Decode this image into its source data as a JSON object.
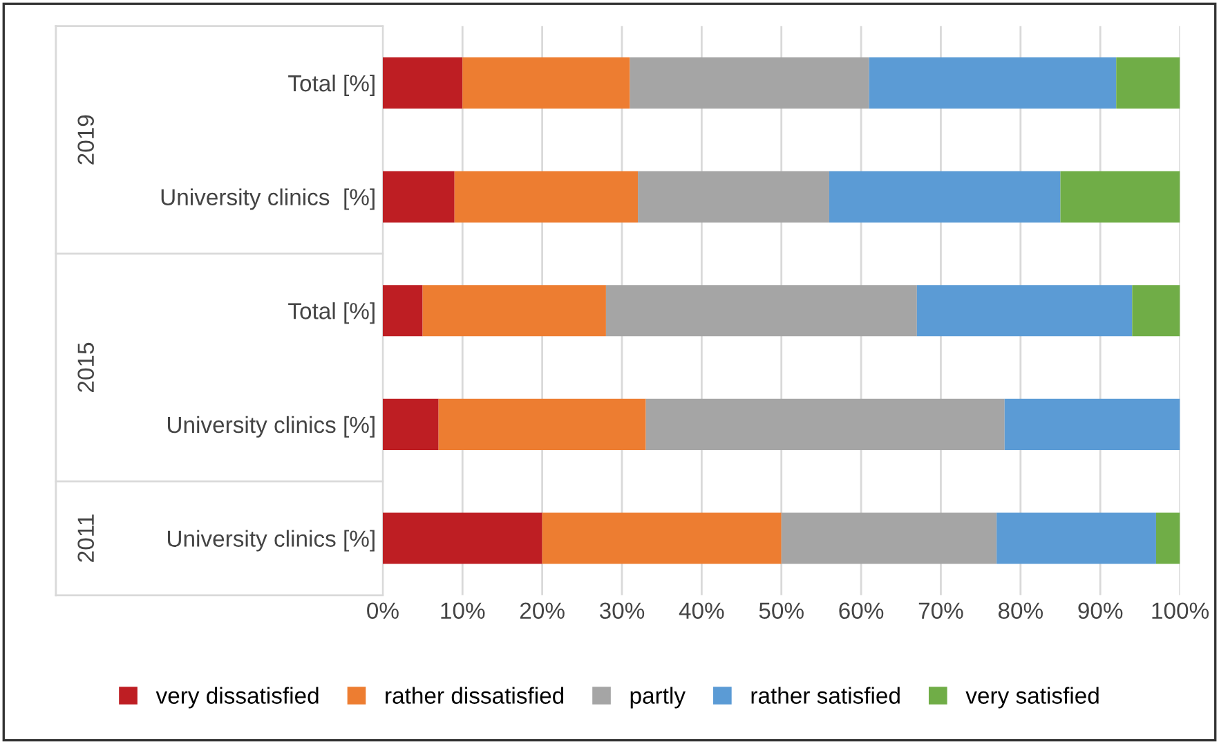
{
  "chart_data": {
    "type": "bar",
    "orientation": "horizontal",
    "stacked": true,
    "categories": [
      "Total [%]",
      "University clinics  [%]",
      "Total [%]",
      "University clinics [%]",
      "University clinics [%]"
    ],
    "series": [
      {
        "name": "very dissatisfied",
        "color": "#be1e23",
        "values": [
          10,
          9,
          5,
          7,
          20
        ]
      },
      {
        "name": "rather dissatisfied",
        "color": "#ed7d31",
        "values": [
          21,
          23,
          23,
          26,
          30
        ]
      },
      {
        "name": "partly",
        "color": "#a5a5a5",
        "values": [
          30,
          24,
          39,
          45,
          27
        ]
      },
      {
        "name": "rather satisfied",
        "color": "#5b9bd5",
        "values": [
          31,
          29,
          27,
          22,
          20
        ]
      },
      {
        "name": "very satisfied",
        "color": "#70ad47",
        "values": [
          8,
          15,
          6,
          0,
          3
        ]
      }
    ],
    "xlim": [
      0,
      100
    ],
    "xticks": [
      {
        "value": 0,
        "label": "0%"
      },
      {
        "value": 10,
        "label": "10%"
      },
      {
        "value": 20,
        "label": "20%"
      },
      {
        "value": 30,
        "label": "30%"
      },
      {
        "value": 40,
        "label": "40%"
      },
      {
        "value": 50,
        "label": "50%"
      },
      {
        "value": 60,
        "label": "60%"
      },
      {
        "value": 70,
        "label": "70%"
      },
      {
        "value": 80,
        "label": "80%"
      },
      {
        "value": 90,
        "label": "90%"
      },
      {
        "value": 100,
        "label": "100%"
      }
    ],
    "annotations": [
      "2019",
      "2015",
      "2011"
    ],
    "grid": "x",
    "legend": "bottom"
  }
}
